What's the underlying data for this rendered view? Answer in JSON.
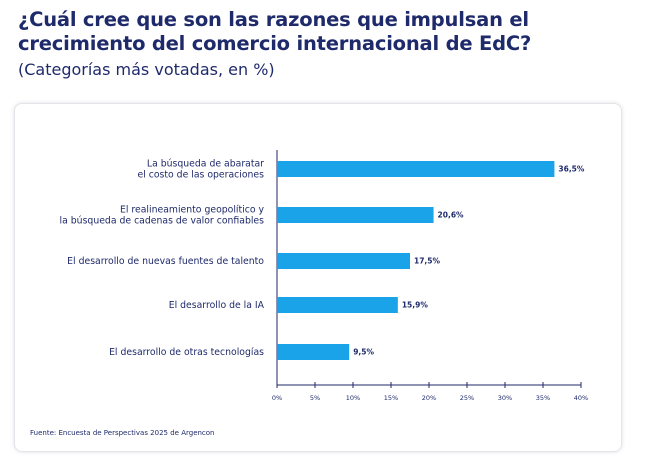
{
  "header": {
    "title": "¿Cuál cree que son las razones que impulsan el crecimiento del comercio internacional de EdC?",
    "subtitle": "(Categorías más votadas, en %)"
  },
  "chart_data": {
    "type": "bar",
    "orientation": "horizontal",
    "categories": [
      [
        "La búsqueda de abaratar",
        "el costo de las operaciones"
      ],
      [
        "El realineamiento geopolítico y",
        "la búsqueda de cadenas de valor confiables"
      ],
      [
        "El desarrollo de nuevas fuentes de talento"
      ],
      [
        "El desarrollo de la IA"
      ],
      [
        "El desarrollo de otras tecnologías"
      ]
    ],
    "values": [
      36.5,
      20.6,
      17.5,
      15.9,
      9.5
    ],
    "value_labels": [
      "36,5%",
      "20,6%",
      "17,5%",
      "15,9%",
      "9,5%"
    ],
    "xlim": [
      0,
      40
    ],
    "x_ticks": [
      0,
      5,
      10,
      15,
      20,
      25,
      30,
      35,
      40
    ],
    "x_tick_labels": [
      "0%",
      "5%",
      "10%",
      "15%",
      "20%",
      "25%",
      "30%",
      "35%",
      "40%"
    ],
    "bar_color": "#1aa3e8",
    "axis_color": "#1f2a6b",
    "grid": false,
    "legend": "none"
  },
  "footer": {
    "source": "Fuente: Encuesta de Perspectivas 2025 de Argencon"
  }
}
